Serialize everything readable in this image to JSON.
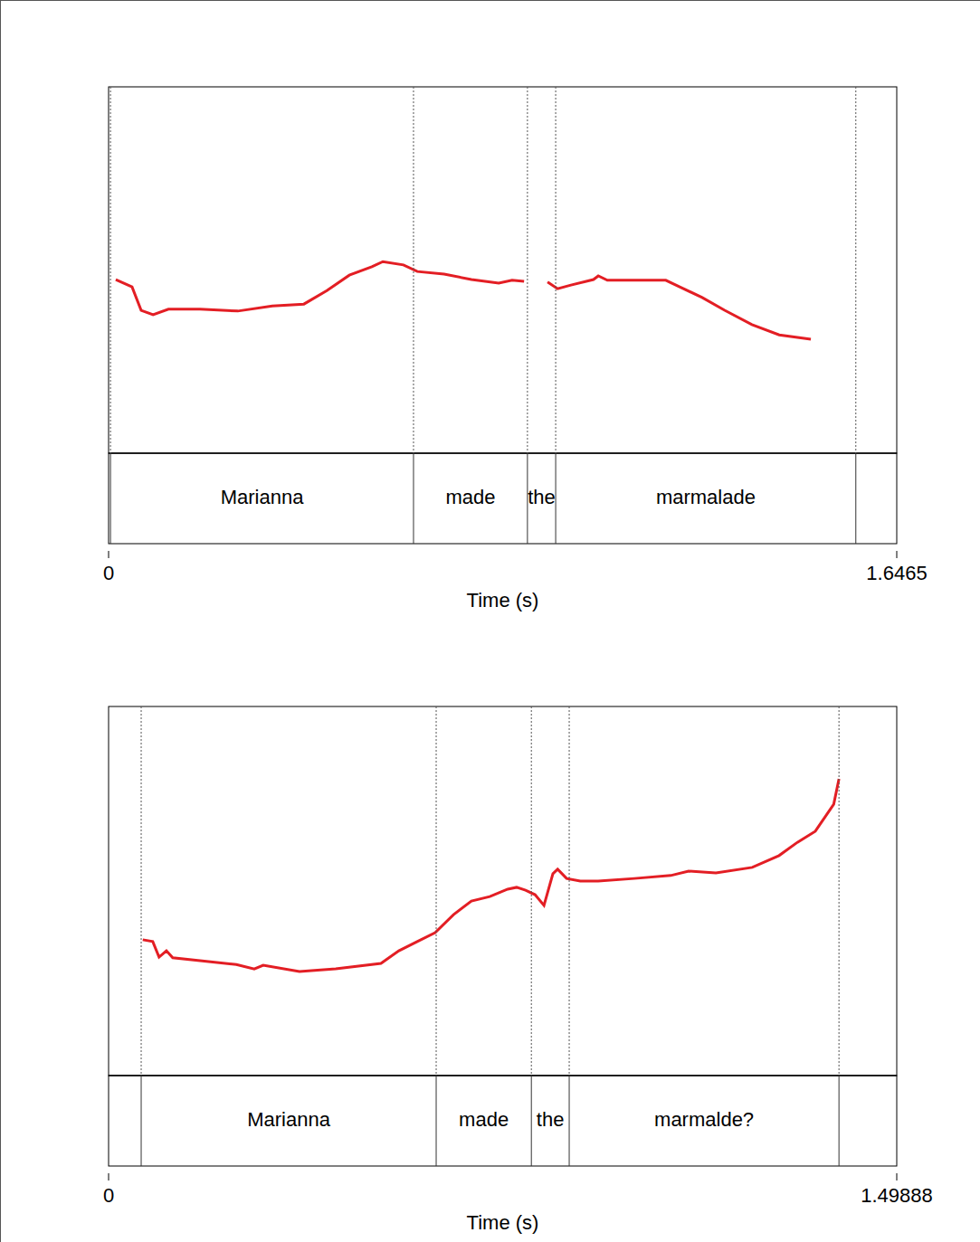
{
  "chart_data": [
    {
      "type": "line",
      "color": "#e31e24",
      "marker": "none",
      "tick_labels": "x",
      "xlabel": "Time (s)",
      "xlim": [
        0,
        1.6465
      ],
      "xticks": [
        0,
        1.6465
      ],
      "ylim": [
        0,
        100
      ],
      "x": [
        0.015,
        0.049,
        0.068,
        0.093,
        0.125,
        0.191,
        0.27,
        0.342,
        0.408,
        0.456,
        0.503,
        0.55,
        0.573,
        0.616,
        0.645,
        0.701,
        0.758,
        0.815,
        0.843,
        0.868,
        0.9,
        0.917,
        0.938,
        0.966,
        1.013,
        1.023,
        1.042,
        1.098,
        1.164,
        1.193,
        1.24,
        1.287,
        1.344,
        1.401,
        1.467
      ],
      "values": [
        47.4,
        45.4,
        39.0,
        37.8,
        39.3,
        39.3,
        38.8,
        40.2,
        40.7,
        44.4,
        48.6,
        50.9,
        52.3,
        51.4,
        49.6,
        48.9,
        47.4,
        46.4,
        47.2,
        46.9,
        null,
        46.7,
        44.9,
        45.9,
        47.4,
        48.4,
        47.2,
        47.2,
        47.2,
        45.4,
        42.5,
        39.0,
        35.1,
        32.3,
        31.1
      ],
      "words": [
        {
          "text": "Marianna",
          "start": 0.004,
          "end": 0.637
        },
        {
          "text": "made",
          "start": 0.637,
          "end": 0.875
        },
        {
          "text": "the",
          "start": 0.875,
          "end": 0.934
        },
        {
          "text": "marmalade",
          "start": 0.934,
          "end": 1.561
        }
      ]
    },
    {
      "type": "line",
      "color": "#e31e24",
      "marker": "none",
      "tick_labels": "x",
      "xlabel": "Time (s)",
      "xlim": [
        0,
        1.49888
      ],
      "xticks": [
        0,
        1.49888
      ],
      "ylim": [
        0,
        100
      ],
      "x": [
        0.065,
        0.084,
        0.096,
        0.11,
        0.122,
        0.174,
        0.243,
        0.277,
        0.294,
        0.363,
        0.432,
        0.518,
        0.552,
        0.587,
        0.621,
        0.656,
        0.69,
        0.725,
        0.759,
        0.776,
        0.793,
        0.811,
        0.828,
        0.845,
        0.854,
        0.871,
        0.897,
        0.931,
        1.0,
        1.069,
        1.103,
        1.155,
        1.224,
        1.275,
        1.31,
        1.344,
        1.379,
        1.389
      ],
      "values": [
        36.8,
        36.3,
        32.1,
        33.8,
        31.9,
        31.1,
        30.1,
        28.9,
        29.9,
        28.2,
        28.9,
        30.4,
        33.8,
        36.3,
        38.7,
        43.6,
        47.3,
        48.5,
        50.5,
        51.0,
        50.2,
        49.0,
        46.1,
        54.7,
        55.9,
        53.4,
        52.7,
        52.7,
        53.4,
        54.2,
        55.4,
        54.9,
        56.4,
        59.6,
        63.2,
        66.2,
        73.5,
        80.4
      ],
      "words": [
        {
          "text": "Marianna",
          "start": 0.062,
          "end": 0.623
        },
        {
          "text": "made",
          "start": 0.623,
          "end": 0.804
        },
        {
          "text": "the",
          "start": 0.804,
          "end": 0.876
        },
        {
          "text": "marmalde?",
          "start": 0.876,
          "end": 1.389
        }
      ]
    }
  ]
}
